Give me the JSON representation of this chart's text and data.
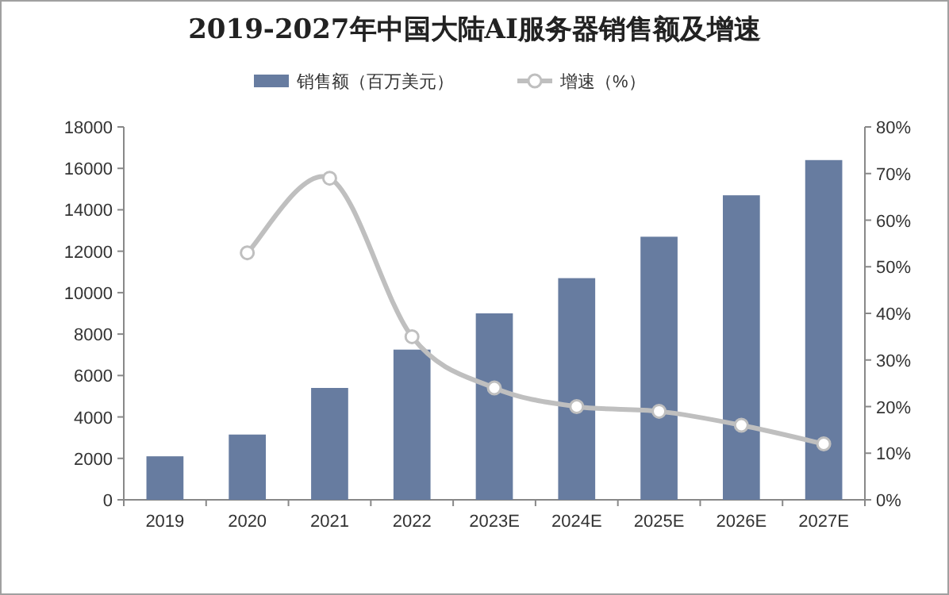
{
  "chart_data": {
    "type": "bar",
    "title": "2019-2027年中国大陆AI服务器销售额及增速",
    "categories": [
      "2019",
      "2020",
      "2021",
      "2022",
      "2023E",
      "2024E",
      "2025E",
      "2026E",
      "2027E"
    ],
    "series": [
      {
        "name": "销售额（百万美元）",
        "color": "#677ca0",
        "values": [
          2100,
          3150,
          5400,
          7250,
          9000,
          10700,
          12700,
          14700,
          16400
        ]
      },
      {
        "name": "增速（%）",
        "type": "line",
        "axis": "y2",
        "color": "#bfbfbf",
        "marker": "circle",
        "values": [
          null,
          53,
          69,
          35,
          24,
          20,
          19,
          16,
          12
        ]
      }
    ],
    "ylim": [
      0,
      18000
    ],
    "yticks": [
      0,
      2000,
      4000,
      6000,
      8000,
      10000,
      12000,
      14000,
      16000,
      18000
    ],
    "y2lim": [
      0,
      80
    ],
    "y2ticks": [
      {
        "value": 0,
        "label": "0%"
      },
      {
        "value": 10,
        "label": "10%"
      },
      {
        "value": 20,
        "label": "20%"
      },
      {
        "value": 30,
        "label": "30%"
      },
      {
        "value": 40,
        "label": "40%"
      },
      {
        "value": 50,
        "label": "50%"
      },
      {
        "value": 60,
        "label": "60%"
      },
      {
        "value": 70,
        "label": "70%"
      },
      {
        "value": 80,
        "label": "80%"
      }
    ],
    "legend": "top"
  }
}
